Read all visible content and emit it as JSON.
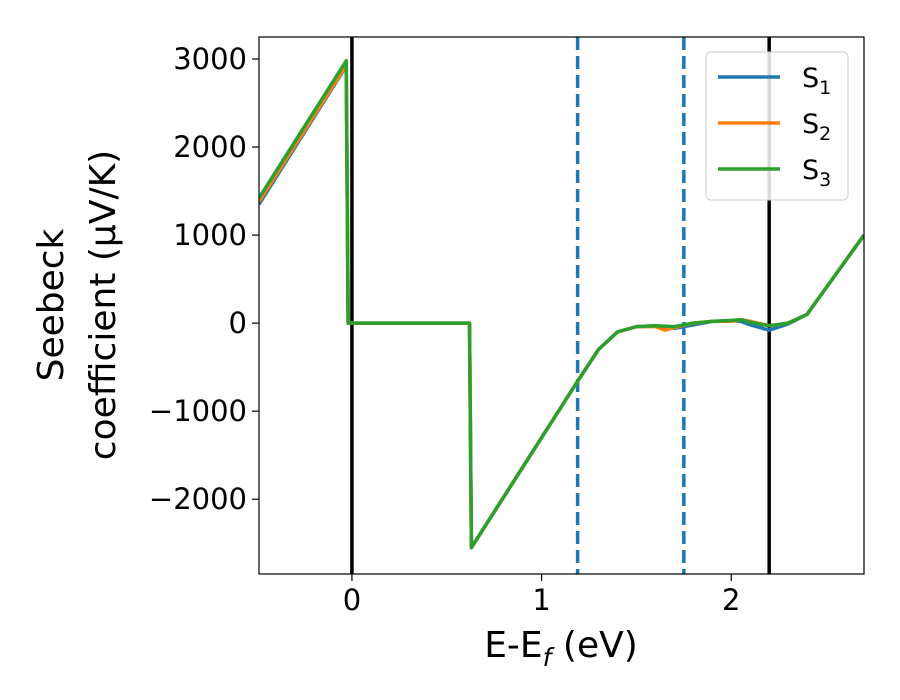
{
  "chart_data": {
    "type": "line",
    "xlabel_main": "E-E",
    "xlabel_sub": "f",
    "xlabel_unit": " (eV)",
    "ylabel_line1": "Seebeck",
    "ylabel_line2": "coefficient  (μV/K)",
    "xlim": [
      -0.49,
      2.7
    ],
    "ylim": [
      -2850,
      3250
    ],
    "x_ticks": [
      0,
      1,
      2
    ],
    "x_tick_labels": [
      "0",
      "1",
      "2"
    ],
    "y_ticks": [
      3000,
      2000,
      1000,
      0,
      -1000,
      -2000
    ],
    "y_tick_labels": [
      "3000",
      "2000",
      "1000",
      "0",
      "−1000",
      "−2000"
    ],
    "grid": false,
    "legend_position": "top-right",
    "vertical_lines": [
      {
        "x": 0.0,
        "style": "solid",
        "color": "#000000"
      },
      {
        "x": 2.2,
        "style": "solid",
        "color": "#000000"
      },
      {
        "x": 1.19,
        "style": "dashed",
        "color": "#1f77b4"
      },
      {
        "x": 1.75,
        "style": "dashed",
        "color": "#1f77b4"
      }
    ],
    "series": [
      {
        "name": "S",
        "subscript": "1",
        "color": "#1f77b4",
        "x": [
          -0.49,
          -0.03,
          -0.02,
          0.62,
          0.63,
          1.19,
          1.3,
          1.4,
          1.5,
          1.6,
          1.7,
          1.8,
          1.9,
          2.0,
          2.05,
          2.1,
          2.2,
          2.3,
          2.4,
          2.5,
          2.6,
          2.7
        ],
        "y": [
          1350,
          2920,
          0,
          0,
          -2550,
          -660,
          -300,
          -100,
          -40,
          -30,
          -60,
          -20,
          20,
          30,
          20,
          -20,
          -80,
          -10,
          100,
          400,
          700,
          1000
        ]
      },
      {
        "name": "S",
        "subscript": "2",
        "color": "#ff7f0e",
        "x": [
          -0.49,
          -0.03,
          -0.02,
          0.62,
          0.63,
          1.19,
          1.3,
          1.4,
          1.5,
          1.6,
          1.65,
          1.7,
          1.8,
          1.9,
          2.0,
          2.05,
          2.1,
          2.2,
          2.3,
          2.4,
          2.5,
          2.6,
          2.7
        ],
        "y": [
          1380,
          2930,
          0,
          0,
          -2550,
          -660,
          -300,
          -100,
          -40,
          -40,
          -80,
          -50,
          0,
          20,
          20,
          40,
          20,
          -30,
          0,
          100,
          400,
          700,
          1000
        ]
      },
      {
        "name": "S",
        "subscript": "3",
        "color": "#2ca02c",
        "x": [
          -0.49,
          -0.03,
          -0.02,
          0.62,
          0.63,
          1.19,
          1.3,
          1.4,
          1.5,
          1.6,
          1.7,
          1.8,
          1.9,
          2.0,
          2.05,
          2.1,
          2.2,
          2.3,
          2.4,
          2.5,
          2.6,
          2.7
        ],
        "y": [
          1420,
          2980,
          0,
          0,
          -2550,
          -660,
          -300,
          -100,
          -40,
          -30,
          -40,
          0,
          20,
          30,
          40,
          10,
          -30,
          0,
          100,
          400,
          700,
          1000
        ]
      }
    ]
  }
}
